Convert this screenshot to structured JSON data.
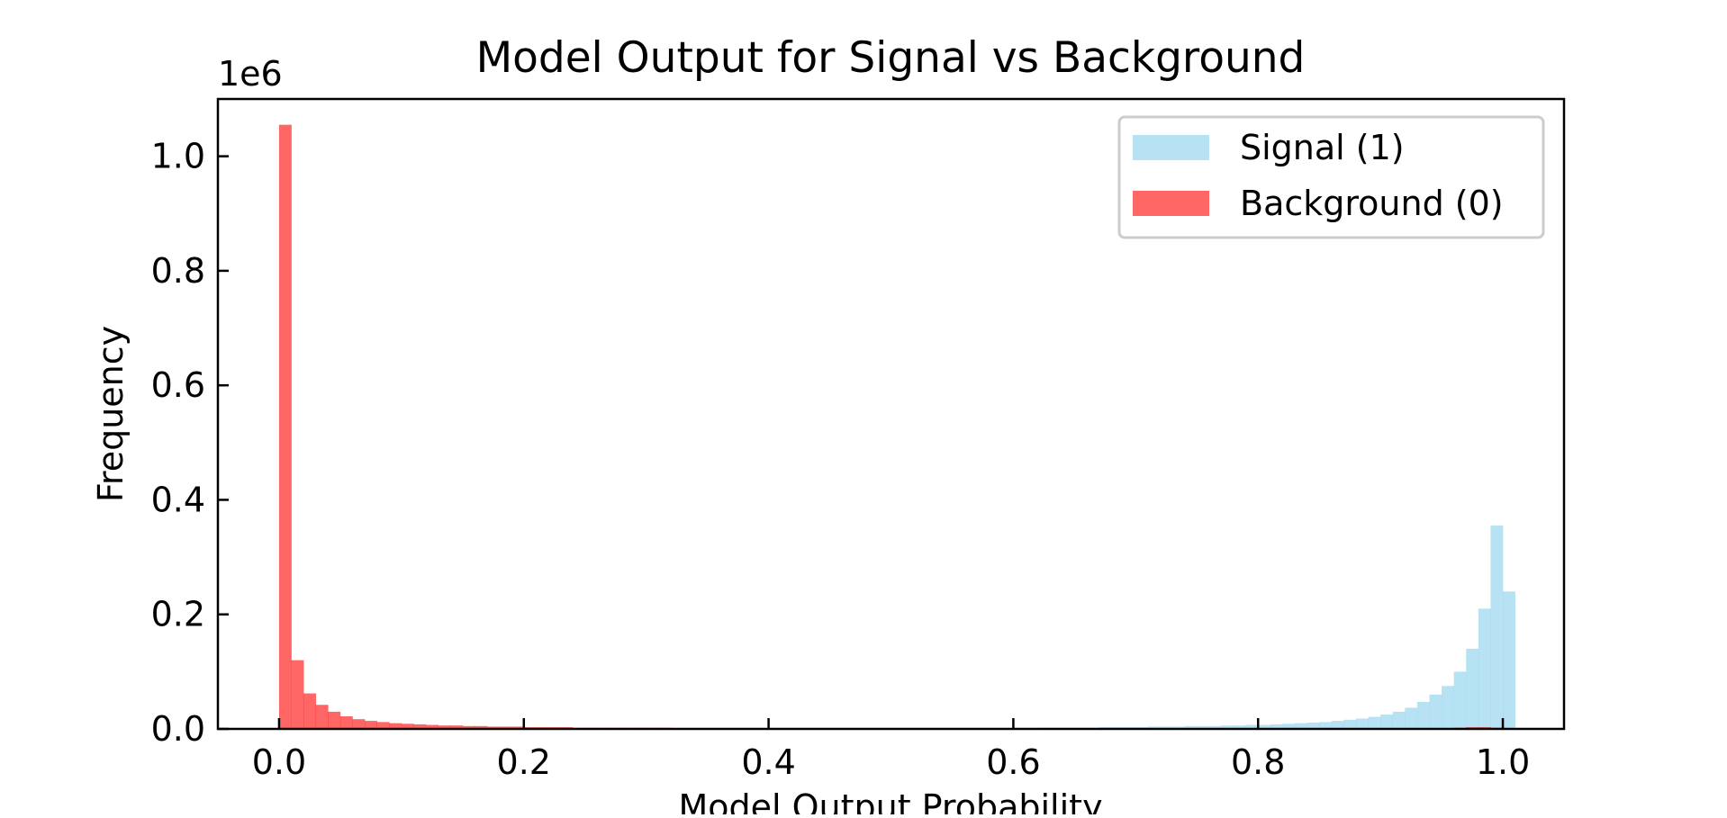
{
  "chart_data": {
    "type": "bar",
    "title": "Model Output for Signal vs Background",
    "xlabel": "Model Output Probability",
    "ylabel": "Frequency",
    "y_offset_label": "1e6",
    "xlim": [
      -0.05,
      1.05
    ],
    "ylim": [
      0,
      1.1
    ],
    "y_unit": "millions",
    "bins": 100,
    "bin_range": [
      0,
      1
    ],
    "xticks": [
      0.0,
      0.2,
      0.4,
      0.6,
      0.8,
      1.0
    ],
    "xtick_labels": [
      "0.0",
      "0.2",
      "0.4",
      "0.6",
      "0.8",
      "1.0"
    ],
    "yticks": [
      0.0,
      0.2,
      0.4,
      0.6,
      0.8,
      1.0
    ],
    "ytick_labels": [
      "0.0",
      "0.2",
      "0.4",
      "0.6",
      "0.8",
      "1.0"
    ],
    "grid": false,
    "legend_position": "top-right",
    "series": [
      {
        "name": "Signal (1)",
        "color": "#87ceeb",
        "opacity": 0.6,
        "values": [
          0,
          0,
          0,
          0,
          0,
          0,
          0,
          0,
          0,
          0,
          0,
          0,
          0,
          0,
          0,
          0,
          0,
          0,
          0,
          0,
          0,
          0,
          0,
          0,
          0,
          0,
          0,
          0,
          0,
          0,
          0,
          0,
          0,
          0,
          0,
          0,
          0,
          0,
          0,
          0,
          0,
          0,
          0,
          0,
          0,
          0,
          0,
          0,
          0,
          0,
          0,
          0,
          0,
          0,
          0,
          0,
          0.001,
          0.001,
          0.001,
          0.001,
          0.001,
          0.001,
          0.002,
          0.002,
          0.002,
          0.002,
          0.002,
          0.003,
          0.003,
          0.003,
          0.003,
          0.004,
          0.004,
          0.004,
          0.005,
          0.005,
          0.005,
          0.006,
          0.006,
          0.007,
          0.007,
          0.008,
          0.009,
          0.01,
          0.011,
          0.012,
          0.014,
          0.016,
          0.018,
          0.021,
          0.025,
          0.03,
          0.037,
          0.047,
          0.06,
          0.075,
          0.1,
          0.14,
          0.21,
          0.355,
          0.24
        ]
      },
      {
        "name": "Background (0)",
        "color": "#ff0000",
        "opacity": 0.6,
        "values": [
          1.055,
          0.12,
          0.062,
          0.042,
          0.03,
          0.022,
          0.017,
          0.014,
          0.012,
          0.01,
          0.009,
          0.008,
          0.007,
          0.006,
          0.006,
          0.005,
          0.005,
          0.004,
          0.004,
          0.004,
          0.003,
          0.003,
          0.003,
          0.003,
          0.002,
          0.002,
          0.002,
          0.002,
          0.002,
          0.002,
          0.002,
          0.002,
          0.001,
          0.001,
          0.001,
          0.001,
          0.001,
          0.001,
          0.001,
          0.001,
          0.001,
          0.001,
          0.001,
          0.001,
          0,
          0,
          0,
          0,
          0,
          0,
          0,
          0,
          0,
          0,
          0,
          0,
          0,
          0,
          0,
          0,
          0,
          0,
          0,
          0,
          0,
          0,
          0,
          0,
          0,
          0,
          0,
          0,
          0,
          0,
          0,
          0,
          0,
          0,
          0,
          0,
          0,
          0,
          0,
          0,
          0,
          0,
          0,
          0,
          0,
          0,
          0,
          0,
          0,
          0,
          0.001,
          0.001,
          0.002,
          0.003,
          0.003,
          0.002
        ]
      }
    ]
  }
}
